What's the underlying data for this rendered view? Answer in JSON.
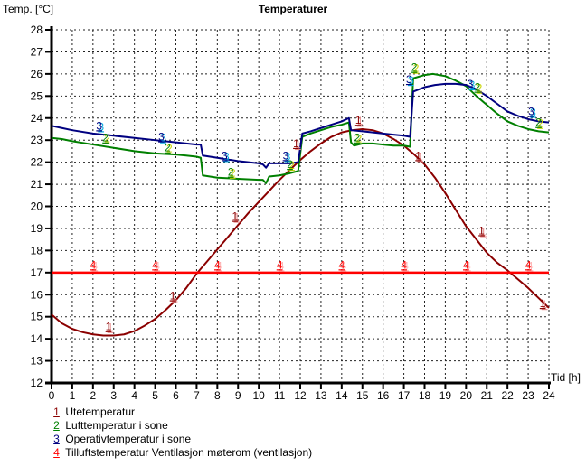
{
  "window": {
    "title": "Temperaturer",
    "y_axis_label": "Temp. [°C]",
    "x_axis_label": "Tid [h]"
  },
  "chart_data": {
    "type": "line",
    "title": "Temperaturer",
    "xlabel": "Tid [h]",
    "ylabel": "Temp. [°C]",
    "xlim": [
      0,
      24
    ],
    "ylim": [
      12,
      28
    ],
    "x_ticks": [
      0,
      1,
      2,
      3,
      4,
      5,
      6,
      7,
      8,
      9,
      10,
      11,
      12,
      13,
      14,
      15,
      16,
      17,
      18,
      19,
      20,
      21,
      22,
      23,
      24
    ],
    "y_ticks": [
      12,
      13,
      14,
      15,
      16,
      17,
      18,
      19,
      20,
      21,
      22,
      23,
      24,
      25,
      26,
      27,
      28
    ],
    "grid": "dashed, 1 unit spacing both axes",
    "legend_position": "bottom-left",
    "series": [
      {
        "id": "1",
        "name": "Utetemperatur",
        "color": "#8B0000",
        "shadow": "#E89090",
        "width": 2,
        "points": [
          [
            0,
            15.1
          ],
          [
            0.5,
            14.7
          ],
          [
            1,
            14.45
          ],
          [
            1.5,
            14.3
          ],
          [
            2,
            14.2
          ],
          [
            2.5,
            14.15
          ],
          [
            3,
            14.15
          ],
          [
            3.5,
            14.2
          ],
          [
            4,
            14.35
          ],
          [
            4.5,
            14.6
          ],
          [
            5,
            14.9
          ],
          [
            5.5,
            15.3
          ],
          [
            6,
            15.75
          ],
          [
            6.5,
            16.3
          ],
          [
            7,
            16.95
          ],
          [
            7.5,
            17.5
          ],
          [
            8,
            18.05
          ],
          [
            8.5,
            18.6
          ],
          [
            9,
            19.15
          ],
          [
            9.5,
            19.7
          ],
          [
            10,
            20.2
          ],
          [
            10.5,
            20.7
          ],
          [
            11,
            21.2
          ],
          [
            11.5,
            21.65
          ],
          [
            12,
            22.1
          ],
          [
            12.5,
            22.5
          ],
          [
            13,
            22.85
          ],
          [
            13.5,
            23.15
          ],
          [
            14,
            23.35
          ],
          [
            14.5,
            23.45
          ],
          [
            15,
            23.5
          ],
          [
            15.5,
            23.45
          ],
          [
            16,
            23.3
          ],
          [
            16.5,
            23.05
          ],
          [
            17,
            22.75
          ],
          [
            17.5,
            22.35
          ],
          [
            18,
            21.9
          ],
          [
            18.5,
            21.3
          ],
          [
            19,
            20.6
          ],
          [
            19.5,
            19.85
          ],
          [
            20,
            19.1
          ],
          [
            20.5,
            18.5
          ],
          [
            21,
            17.9
          ],
          [
            21.5,
            17.45
          ],
          [
            22,
            17.1
          ],
          [
            22.5,
            16.7
          ],
          [
            23,
            16.3
          ],
          [
            23.5,
            15.85
          ],
          [
            24,
            15.4
          ]
        ],
        "curve_labels": [
          [
            2.75,
            14.55
          ],
          [
            5.85,
            15.95
          ],
          [
            8.85,
            19.55
          ],
          [
            11.8,
            22.85
          ],
          [
            14.8,
            23.9
          ],
          [
            17.7,
            22.3
          ],
          [
            20.75,
            18.9
          ],
          [
            23.7,
            15.6
          ]
        ]
      },
      {
        "id": "2",
        "name": "Lufttemperatur i sone",
        "color": "#008000",
        "shadow": "#C8D400",
        "width": 2,
        "points": [
          [
            0,
            23.1
          ],
          [
            0.5,
            23.05
          ],
          [
            1,
            22.95
          ],
          [
            2,
            22.8
          ],
          [
            3,
            22.65
          ],
          [
            4,
            22.5
          ],
          [
            5,
            22.4
          ],
          [
            6,
            22.35
          ],
          [
            6.5,
            22.3
          ],
          [
            7,
            22.25
          ],
          [
            7.2,
            22.2
          ],
          [
            7.3,
            21.4
          ],
          [
            8,
            21.3
          ],
          [
            9,
            21.25
          ],
          [
            10,
            21.2
          ],
          [
            10.2,
            21.2
          ],
          [
            10.35,
            21.05
          ],
          [
            10.5,
            21.35
          ],
          [
            11,
            21.4
          ],
          [
            11.5,
            21.5
          ],
          [
            11.9,
            21.6
          ],
          [
            12.1,
            23.15
          ],
          [
            12.5,
            23.3
          ],
          [
            13,
            23.45
          ],
          [
            13.5,
            23.6
          ],
          [
            14,
            23.7
          ],
          [
            14.35,
            23.8
          ],
          [
            14.45,
            22.9
          ],
          [
            14.6,
            22.75
          ],
          [
            15,
            22.85
          ],
          [
            15.5,
            22.85
          ],
          [
            16,
            22.8
          ],
          [
            16.5,
            22.75
          ],
          [
            17,
            22.75
          ],
          [
            17.3,
            22.7
          ],
          [
            17.45,
            25.8
          ],
          [
            18,
            25.95
          ],
          [
            18.4,
            26.0
          ],
          [
            19,
            25.9
          ],
          [
            19.5,
            25.7
          ],
          [
            20,
            25.45
          ],
          [
            20.5,
            25.0
          ],
          [
            21,
            24.6
          ],
          [
            21.5,
            24.2
          ],
          [
            22,
            23.85
          ],
          [
            22.5,
            23.65
          ],
          [
            23,
            23.5
          ],
          [
            23.5,
            23.4
          ],
          [
            24,
            23.35
          ]
        ],
        "curve_labels": [
          [
            2.6,
            23.1
          ],
          [
            5.6,
            22.65
          ],
          [
            8.65,
            21.55
          ],
          [
            11.5,
            21.9
          ],
          [
            14.75,
            23.1
          ],
          [
            17.5,
            26.3
          ],
          [
            20.55,
            25.4
          ],
          [
            23.5,
            23.8
          ]
        ]
      },
      {
        "id": "3",
        "name": "Operativtemperatur i sone",
        "color": "#000080",
        "shadow": "#00AAE0",
        "width": 2,
        "points": [
          [
            0,
            23.65
          ],
          [
            0.5,
            23.55
          ],
          [
            1,
            23.45
          ],
          [
            2,
            23.3
          ],
          [
            3,
            23.2
          ],
          [
            4,
            23.1
          ],
          [
            5,
            23.0
          ],
          [
            6,
            22.9
          ],
          [
            6.5,
            22.85
          ],
          [
            7,
            22.8
          ],
          [
            7.2,
            22.8
          ],
          [
            7.3,
            22.3
          ],
          [
            8,
            22.2
          ],
          [
            9,
            22.05
          ],
          [
            10,
            21.95
          ],
          [
            10.2,
            21.9
          ],
          [
            10.35,
            21.75
          ],
          [
            10.5,
            21.95
          ],
          [
            11,
            21.95
          ],
          [
            11.5,
            21.95
          ],
          [
            11.9,
            22.0
          ],
          [
            12.1,
            23.3
          ],
          [
            12.5,
            23.4
          ],
          [
            13,
            23.55
          ],
          [
            13.5,
            23.7
          ],
          [
            14,
            23.85
          ],
          [
            14.35,
            24.0
          ],
          [
            14.45,
            23.45
          ],
          [
            15,
            23.4
          ],
          [
            15.5,
            23.35
          ],
          [
            16,
            23.3
          ],
          [
            16.5,
            23.25
          ],
          [
            17,
            23.2
          ],
          [
            17.3,
            23.15
          ],
          [
            17.45,
            25.2
          ],
          [
            18,
            25.4
          ],
          [
            18.5,
            25.5
          ],
          [
            19,
            25.55
          ],
          [
            19.5,
            25.55
          ],
          [
            20,
            25.5
          ],
          [
            20.5,
            25.3
          ],
          [
            21,
            25.0
          ],
          [
            21.5,
            24.65
          ],
          [
            22,
            24.3
          ],
          [
            22.5,
            24.1
          ],
          [
            23,
            23.95
          ],
          [
            23.5,
            23.85
          ],
          [
            24,
            23.8
          ]
        ],
        "curve_labels": [
          [
            2.3,
            23.65
          ],
          [
            5.3,
            23.15
          ],
          [
            8.35,
            22.3
          ],
          [
            11.3,
            22.3
          ],
          [
            17.25,
            25.75
          ],
          [
            20.2,
            25.55
          ],
          [
            23.15,
            24.3
          ]
        ]
      },
      {
        "id": "4",
        "name": "Tilluftstemperatur Ventilasjon møterom (ventilasjon)",
        "color": "#FF0000",
        "shadow": "#FFB0B0",
        "width": 2.5,
        "points": [
          [
            0,
            17
          ],
          [
            24,
            17
          ]
        ],
        "curve_labels": [
          [
            2,
            17.35
          ],
          [
            5,
            17.35
          ],
          [
            8,
            17.35
          ],
          [
            11,
            17.35
          ],
          [
            14,
            17.35
          ],
          [
            17,
            17.35
          ],
          [
            20,
            17.35
          ],
          [
            23,
            17.35
          ]
        ]
      }
    ]
  },
  "legend": {
    "items": [
      {
        "num": "1",
        "label": "Utetemperatur",
        "color": "#8B0000"
      },
      {
        "num": "2",
        "label": "Lufttemperatur i sone",
        "color": "#008000"
      },
      {
        "num": "3",
        "label": "Operativtemperatur i sone",
        "color": "#000080"
      },
      {
        "num": "4",
        "label": "Tilluftstemperatur Ventilasjon møterom (ventilasjon)",
        "color": "#FF0000"
      }
    ]
  }
}
